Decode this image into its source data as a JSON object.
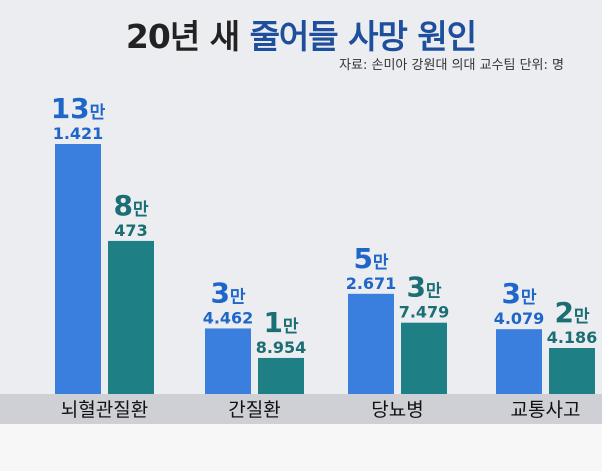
{
  "title": {
    "part1": "20년 새",
    "part2": "줄어들 사망 원인"
  },
  "source": "자료: 손미아 강원대 의대 교수팀   단위: 명",
  "colors": {
    "background": "#ecedf1",
    "label_band": "#cfd0d5",
    "bar_first": "#3a7fde",
    "bar_second": "#1e7f84",
    "label_first": "#1f66c9",
    "label_second": "#1b6e73"
  },
  "chart_data": {
    "type": "bar",
    "title": "20년 새 줄어들 사망 원인",
    "unit": "명",
    "categories": [
      "뇌혈관질환",
      "간질환",
      "당뇨병",
      "교통사고"
    ],
    "series": [
      {
        "values": [
          131421,
          34462,
          52671,
          34079
        ],
        "labels_big": [
          "13",
          "3",
          "5",
          "3"
        ],
        "labels_small": [
          "1.421",
          "4.462",
          "2.671",
          "4.079"
        ]
      },
      {
        "values": [
          80473,
          18954,
          37479,
          24186
        ],
        "labels_big": [
          "8",
          "1",
          "3",
          "2"
        ],
        "labels_small": [
          "473",
          "8.954",
          "7.479",
          "4.186"
        ]
      }
    ],
    "man_suffix": "만",
    "grid": false,
    "legend": "none"
  }
}
